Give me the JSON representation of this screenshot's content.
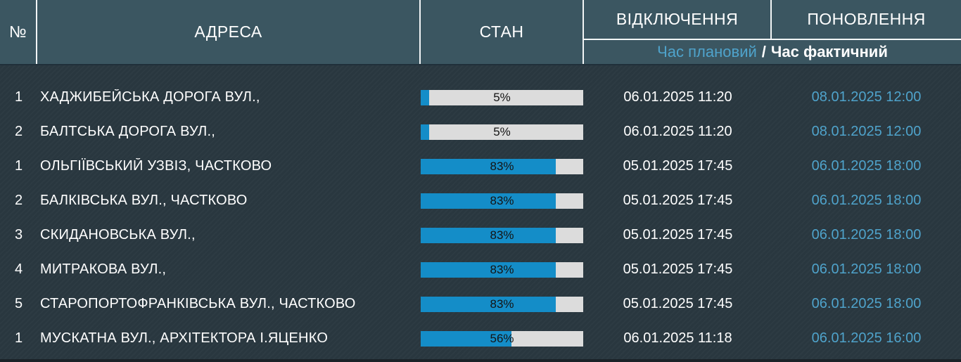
{
  "header": {
    "number_label": "№",
    "address_label": "АДРЕСА",
    "status_label": "СТАН",
    "outage_label": "ВІДКЛЮЧЕННЯ",
    "restore_label": "ПОНОВЛЕННЯ",
    "sub_planned": "Час плановий",
    "sub_separator": "/",
    "sub_actual": "Час фактичний"
  },
  "rows": [
    {
      "num": "1",
      "address": "ХАДЖИБЕЙСЬКА ДОРОГА ВУЛ.,",
      "percent": 5,
      "percent_label": "5%",
      "outage_time": "06.01.2025 11:20",
      "restore_time": "08.01.2025 12:00"
    },
    {
      "num": "2",
      "address": "БАЛТСЬКА ДОРОГА ВУЛ.,",
      "percent": 5,
      "percent_label": "5%",
      "outage_time": "06.01.2025 11:20",
      "restore_time": "08.01.2025 12:00"
    },
    {
      "num": "1",
      "address": "ОЛЬГІЇВСЬКИЙ УЗВІЗ, ЧАСТКОВО",
      "percent": 83,
      "percent_label": "83%",
      "outage_time": "05.01.2025 17:45",
      "restore_time": "06.01.2025 18:00"
    },
    {
      "num": "2",
      "address": "БАЛКІВСЬКА ВУЛ., ЧАСТКОВО",
      "percent": 83,
      "percent_label": "83%",
      "outage_time": "05.01.2025 17:45",
      "restore_time": "06.01.2025 18:00"
    },
    {
      "num": "3",
      "address": "СКИДАНОВСЬКА ВУЛ.,",
      "percent": 83,
      "percent_label": "83%",
      "outage_time": "05.01.2025 17:45",
      "restore_time": "06.01.2025 18:00"
    },
    {
      "num": "4",
      "address": "МИТРАКОВА ВУЛ.,",
      "percent": 83,
      "percent_label": "83%",
      "outage_time": "05.01.2025 17:45",
      "restore_time": "06.01.2025 18:00"
    },
    {
      "num": "5",
      "address": "СТАРОПОРТОФРАНКІВСЬКА ВУЛ., ЧАСТКОВО",
      "percent": 83,
      "percent_label": "83%",
      "outage_time": "05.01.2025 17:45",
      "restore_time": "06.01.2025 18:00"
    },
    {
      "num": "1",
      "address": "МУСКАТНА ВУЛ., АРХІТЕКТОРА І.ЯЦЕНКО",
      "percent": 56,
      "percent_label": "56%",
      "outage_time": "06.01.2025 11:18",
      "restore_time": "06.01.2025 16:00"
    }
  ],
  "colors": {
    "header_bg": "#3b5661",
    "body_bg": "#2a3840",
    "bar_fill": "#148dc8",
    "bar_track": "#dcdcdc",
    "accent_blue": "#4fa3cb",
    "text": "#ffffff"
  }
}
